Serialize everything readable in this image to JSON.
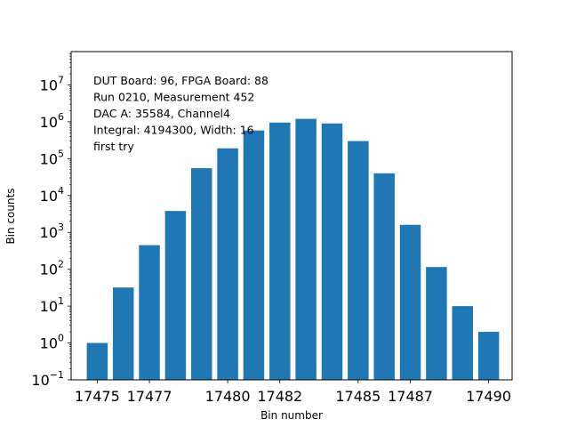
{
  "chart_data": {
    "type": "bar",
    "x": [
      17475,
      17476,
      17477,
      17478,
      17479,
      17480,
      17481,
      17482,
      17483,
      17484,
      17485,
      17486,
      17487,
      17488,
      17489,
      17490
    ],
    "values": [
      1,
      32,
      450,
      3800,
      55000,
      190000,
      580000,
      950000,
      1200000,
      900000,
      300000,
      40000,
      1600,
      115,
      10,
      2
    ],
    "bar_color": "#1f77b4",
    "xlabel": "Bin number",
    "ylabel": "Bin counts",
    "yscale": "log",
    "ylim": [
      0.1,
      80000000
    ],
    "xlim": [
      17474.0,
      17490.9
    ],
    "xticks": [
      17475,
      17477,
      17480,
      17482,
      17485,
      17487,
      17490
    ],
    "yticks": [
      {
        "value": 0.1,
        "base": "10",
        "exp": "−1"
      },
      {
        "value": 1,
        "base": "10",
        "exp": "0"
      },
      {
        "value": 10,
        "base": "10",
        "exp": "1"
      },
      {
        "value": 100,
        "base": "10",
        "exp": "2"
      },
      {
        "value": 1000,
        "base": "10",
        "exp": "3"
      },
      {
        "value": 10000,
        "base": "10",
        "exp": "4"
      },
      {
        "value": 100000,
        "base": "10",
        "exp": "5"
      },
      {
        "value": 1000000,
        "base": "10",
        "exp": "6"
      },
      {
        "value": 10000000,
        "base": "10",
        "exp": "7"
      }
    ],
    "annotation_lines": [
      "DUT Board: 96, FPGA Board: 88",
      "Run 0210, Measurement 452",
      "DAC A: 35584, Channel4",
      "Integral: 4194300, Width: 16",
      "first try"
    ],
    "grid": false,
    "legend": "none"
  }
}
